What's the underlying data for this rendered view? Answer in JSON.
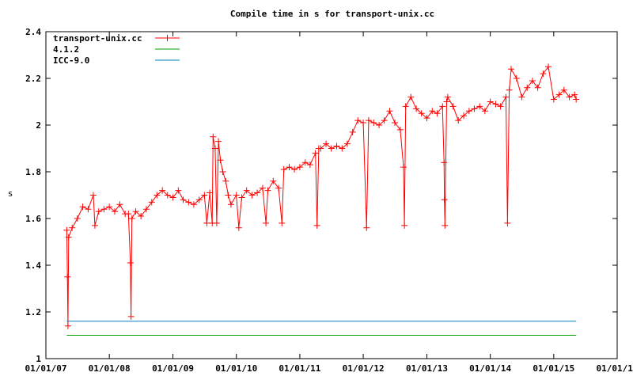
{
  "chart_data": {
    "type": "line",
    "title": "Compile time in s for transport-unix.cc",
    "xlabel": "",
    "ylabel": "s",
    "x_axis": "date",
    "xlim": [
      "2007-01-01",
      "2016-01-01"
    ],
    "ylim": [
      1,
      2.4
    ],
    "x_ticks": [
      "01/01/07",
      "01/01/08",
      "01/01/09",
      "01/01/10",
      "01/01/11",
      "01/01/12",
      "01/01/13",
      "01/01/14",
      "01/01/15",
      "01/01/16"
    ],
    "y_ticks": [
      "1",
      "1.2",
      "1.4",
      "1.6",
      "1.8",
      "2",
      "2.2",
      "2.4"
    ],
    "legend_position": "top-left",
    "grid": false,
    "series": [
      {
        "name": "transport-unix.cc",
        "color": "#ff0000",
        "style": "linespoints",
        "points": [
          [
            "2007-05-01",
            1.55
          ],
          [
            "2007-05-05",
            1.35
          ],
          [
            "2007-05-08",
            1.14
          ],
          [
            "2007-05-12",
            1.52
          ],
          [
            "2007-06-01",
            1.56
          ],
          [
            "2007-07-01",
            1.6
          ],
          [
            "2007-08-01",
            1.65
          ],
          [
            "2007-09-01",
            1.64
          ],
          [
            "2007-10-01",
            1.7
          ],
          [
            "2007-10-10",
            1.57
          ],
          [
            "2007-11-01",
            1.63
          ],
          [
            "2007-12-01",
            1.64
          ],
          [
            "2008-01-01",
            1.65
          ],
          [
            "2008-02-01",
            1.63
          ],
          [
            "2008-03-01",
            1.66
          ],
          [
            "2008-04-01",
            1.62
          ],
          [
            "2008-04-20",
            1.62
          ],
          [
            "2008-05-01",
            1.41
          ],
          [
            "2008-05-05",
            1.18
          ],
          [
            "2008-05-10",
            1.6
          ],
          [
            "2008-06-01",
            1.63
          ],
          [
            "2008-07-01",
            1.61
          ],
          [
            "2008-08-01",
            1.64
          ],
          [
            "2008-09-01",
            1.67
          ],
          [
            "2008-10-01",
            1.7
          ],
          [
            "2008-11-01",
            1.72
          ],
          [
            "2008-12-01",
            1.7
          ],
          [
            "2009-01-01",
            1.69
          ],
          [
            "2009-02-01",
            1.72
          ],
          [
            "2009-03-01",
            1.68
          ],
          [
            "2009-04-01",
            1.67
          ],
          [
            "2009-05-01",
            1.66
          ],
          [
            "2009-06-01",
            1.68
          ],
          [
            "2009-07-01",
            1.7
          ],
          [
            "2009-07-15",
            1.58
          ],
          [
            "2009-08-01",
            1.71
          ],
          [
            "2009-08-15",
            1.58
          ],
          [
            "2009-08-20",
            1.95
          ],
          [
            "2009-09-01",
            1.9
          ],
          [
            "2009-09-10",
            1.58
          ],
          [
            "2009-09-20",
            1.93
          ],
          [
            "2009-10-01",
            1.85
          ],
          [
            "2009-10-15",
            1.8
          ],
          [
            "2009-11-01",
            1.76
          ],
          [
            "2009-11-15",
            1.7
          ],
          [
            "2009-12-01",
            1.66
          ],
          [
            "2010-01-01",
            1.7
          ],
          [
            "2010-01-15",
            1.56
          ],
          [
            "2010-02-01",
            1.69
          ],
          [
            "2010-03-01",
            1.72
          ],
          [
            "2010-04-01",
            1.7
          ],
          [
            "2010-05-01",
            1.71
          ],
          [
            "2010-06-01",
            1.73
          ],
          [
            "2010-06-20",
            1.58
          ],
          [
            "2010-07-01",
            1.72
          ],
          [
            "2010-08-01",
            1.76
          ],
          [
            "2010-09-01",
            1.73
          ],
          [
            "2010-09-20",
            1.58
          ],
          [
            "2010-10-01",
            1.81
          ],
          [
            "2010-11-01",
            1.82
          ],
          [
            "2010-12-01",
            1.81
          ],
          [
            "2011-01-01",
            1.82
          ],
          [
            "2011-02-01",
            1.84
          ],
          [
            "2011-03-01",
            1.83
          ],
          [
            "2011-04-01",
            1.88
          ],
          [
            "2011-04-10",
            1.57
          ],
          [
            "2011-04-20",
            1.9
          ],
          [
            "2011-05-01",
            1.9
          ],
          [
            "2011-06-01",
            1.92
          ],
          [
            "2011-07-01",
            1.9
          ],
          [
            "2011-08-01",
            1.91
          ],
          [
            "2011-09-01",
            1.9
          ],
          [
            "2011-10-01",
            1.92
          ],
          [
            "2011-11-01",
            1.97
          ],
          [
            "2011-12-01",
            2.02
          ],
          [
            "2012-01-01",
            2.01
          ],
          [
            "2012-01-20",
            1.56
          ],
          [
            "2012-02-01",
            2.02
          ],
          [
            "2012-03-01",
            2.01
          ],
          [
            "2012-04-01",
            2.0
          ],
          [
            "2012-05-01",
            2.02
          ],
          [
            "2012-06-01",
            2.06
          ],
          [
            "2012-07-01",
            2.01
          ],
          [
            "2012-08-01",
            1.98
          ],
          [
            "2012-08-20",
            1.82
          ],
          [
            "2012-08-25",
            1.57
          ],
          [
            "2012-09-01",
            2.08
          ],
          [
            "2012-10-01",
            2.12
          ],
          [
            "2012-11-01",
            2.07
          ],
          [
            "2012-12-01",
            2.05
          ],
          [
            "2013-01-01",
            2.03
          ],
          [
            "2013-02-01",
            2.06
          ],
          [
            "2013-03-01",
            2.05
          ],
          [
            "2013-04-01",
            2.08
          ],
          [
            "2013-04-10",
            1.84
          ],
          [
            "2013-04-12",
            1.68
          ],
          [
            "2013-04-15",
            1.57
          ],
          [
            "2013-04-25",
            2.1
          ],
          [
            "2013-05-01",
            2.12
          ],
          [
            "2013-06-01",
            2.08
          ],
          [
            "2013-07-01",
            2.02
          ],
          [
            "2013-08-01",
            2.04
          ],
          [
            "2013-09-01",
            2.06
          ],
          [
            "2013-10-01",
            2.07
          ],
          [
            "2013-11-01",
            2.08
          ],
          [
            "2013-12-01",
            2.06
          ],
          [
            "2014-01-01",
            2.1
          ],
          [
            "2014-02-01",
            2.09
          ],
          [
            "2014-03-01",
            2.08
          ],
          [
            "2014-04-01",
            2.12
          ],
          [
            "2014-04-10",
            1.58
          ],
          [
            "2014-04-20",
            2.15
          ],
          [
            "2014-05-01",
            2.24
          ],
          [
            "2014-06-01",
            2.2
          ],
          [
            "2014-07-01",
            2.12
          ],
          [
            "2014-08-01",
            2.16
          ],
          [
            "2014-09-01",
            2.19
          ],
          [
            "2014-10-01",
            2.16
          ],
          [
            "2014-11-01",
            2.22
          ],
          [
            "2014-12-01",
            2.25
          ],
          [
            "2015-01-01",
            2.11
          ],
          [
            "2015-02-01",
            2.13
          ],
          [
            "2015-03-01",
            2.15
          ],
          [
            "2015-04-01",
            2.12
          ],
          [
            "2015-05-01",
            2.13
          ],
          [
            "2015-05-10",
            2.11
          ]
        ]
      },
      {
        "name": "4.1.2",
        "color": "#00a000",
        "style": "lines",
        "points": [
          [
            "2007-05-01",
            1.1
          ],
          [
            "2015-05-10",
            1.1
          ]
        ]
      },
      {
        "name": "ICC-9.0",
        "color": "#0080c0",
        "style": "lines",
        "points": [
          [
            "2007-05-01",
            1.16
          ],
          [
            "2015-05-10",
            1.16
          ]
        ]
      }
    ]
  }
}
